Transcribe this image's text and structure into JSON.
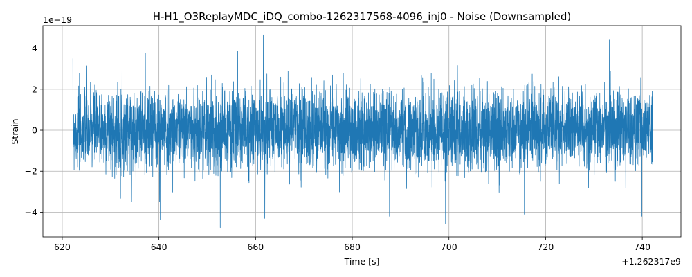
{
  "chart_data": {
    "type": "line",
    "title": "H-H1_O3ReplayMDC_iDQ_combo-1262317568-4096_inj0 - Noise (Downsampled)",
    "xlabel": "Time [s]",
    "ylabel": "Strain",
    "x_offset_label": "+1.262317e9",
    "y_scale_label": "1e−19",
    "xlim": [
      616,
      748
    ],
    "ylim": [
      -5.2,
      5.1
    ],
    "xticks": [
      620,
      640,
      660,
      680,
      700,
      720,
      740
    ],
    "xtick_labels": [
      "620",
      "640",
      "660",
      "680",
      "700",
      "720",
      "740"
    ],
    "yticks": [
      -4,
      -2,
      0,
      2,
      4
    ],
    "ytick_labels": [
      "−4",
      "−2",
      "0",
      "2",
      "4"
    ],
    "grid": true,
    "series_color": "#1f77b4",
    "series": [
      {
        "x_range": [
          622.2,
          742.2
        ],
        "y_rms": 0.95,
        "y_max": 4.65,
        "y_min": -4.75,
        "peaks": [
          {
            "x": 661.6,
            "y": 4.65
          },
          {
            "x": 733.2,
            "y": 4.4
          },
          {
            "x": 656.3,
            "y": 3.85
          },
          {
            "x": 637.2,
            "y": 3.75
          },
          {
            "x": 652.7,
            "y": -4.75
          },
          {
            "x": 699.3,
            "y": -4.55
          },
          {
            "x": 640.3,
            "y": -4.35
          },
          {
            "x": 661.9,
            "y": -4.3
          },
          {
            "x": 739.9,
            "y": -4.2
          },
          {
            "x": 687.7,
            "y": -4.2
          },
          {
            "x": 715.6,
            "y": -4.1
          }
        ]
      }
    ]
  }
}
